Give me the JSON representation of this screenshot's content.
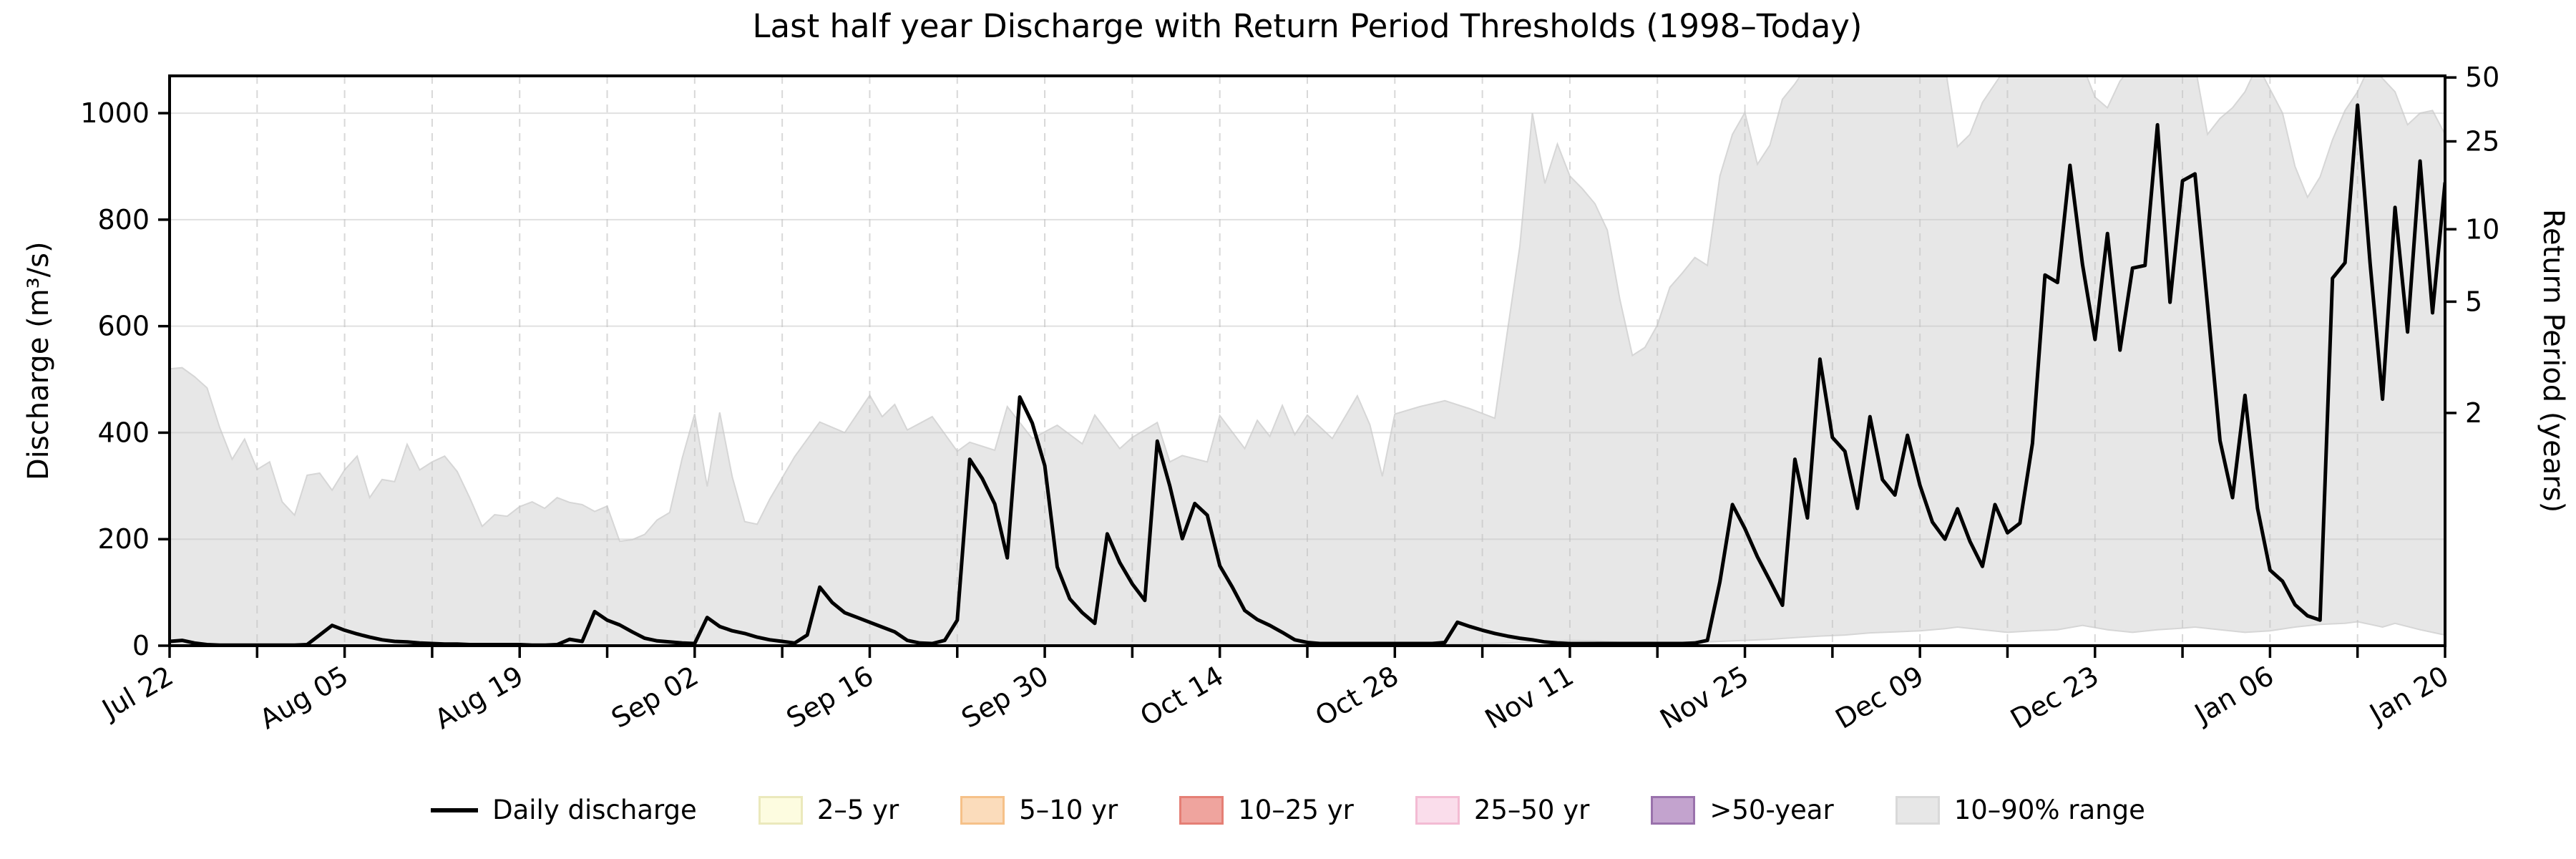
{
  "chart_data": {
    "type": "line",
    "title": "Last half year Discharge with Return Period Thresholds (1998–Today)",
    "ylabel_left": "Discharge (m³/s)",
    "ylabel_right": "Return Period (years)",
    "start_date": "Jul 22",
    "end_date": "Jan 20",
    "x_range_days": [
      0,
      182
    ],
    "x_minor_tick_interval_days": 7,
    "x_major_tick_days": [
      0,
      14,
      28,
      42,
      56,
      70,
      84,
      98,
      112,
      126,
      140,
      154,
      168,
      182
    ],
    "x_tick_labels": [
      "Jul 22",
      "Aug 05",
      "Aug 19",
      "Sep 02",
      "Sep 16",
      "Sep 30",
      "Oct 14",
      "Oct 28",
      "Nov 11",
      "Nov 25",
      "Dec 09",
      "Dec 23",
      "Jan 06",
      "Jan 20"
    ],
    "ylim_left": [
      0,
      1070
    ],
    "y_ticks_left": [
      0,
      200,
      400,
      600,
      800,
      1000
    ],
    "right_axis_ticks": [
      {
        "label": "2",
        "discharge": 437
      },
      {
        "label": "5",
        "discharge": 646
      },
      {
        "label": "10",
        "discharge": 782
      },
      {
        "label": "25",
        "discharge": 947
      },
      {
        "label": "50",
        "discharge": 1067
      }
    ],
    "grid": {
      "horizontal": "solid",
      "vertical": "dashed",
      "vertical_interval_days": 7,
      "legend_position": "bottom-center"
    },
    "colors": {
      "line": "#000000",
      "band_fill": "#e7e7e7",
      "band_edge": "#d6d6d6",
      "h_grid": "#c8c8c8",
      "v_grid": "#c4c4c4"
    },
    "legend": [
      {
        "label": "Daily discharge",
        "type": "line",
        "color": "#000000"
      },
      {
        "label": "2–5 yr",
        "type": "patch",
        "fill": "#fdfce0",
        "edge": "#ebe9bc"
      },
      {
        "label": "5–10 yr",
        "type": "patch",
        "fill": "#fbdcbb",
        "edge": "#f6c189"
      },
      {
        "label": "10–25 yr",
        "type": "patch",
        "fill": "#efa49e",
        "edge": "#e57f75"
      },
      {
        "label": "25–50 yr",
        "type": "patch",
        "fill": "#faddeb",
        "edge": "#f3bbd3"
      },
      {
        "label": ">50-year",
        "type": "patch",
        "fill": "#c3a3ce",
        "edge": "#9a72ac"
      },
      {
        "label": "10–90% range",
        "type": "patch",
        "fill": "#e7e7e7",
        "edge": "#d9d9d9"
      }
    ],
    "series": {
      "daily_discharge": {
        "name": "Daily discharge",
        "start_date": "Jul 22",
        "interval_days": 1,
        "values": [
          8,
          10,
          5,
          2,
          1,
          1,
          1,
          1,
          1,
          1,
          1,
          2,
          20,
          38,
          29,
          22,
          16,
          11,
          8,
          7,
          5,
          4,
          3,
          3,
          2,
          2,
          2,
          2,
          2,
          1,
          1,
          2,
          12,
          8,
          64,
          48,
          39,
          26,
          14,
          9,
          7,
          5,
          4,
          53,
          36,
          28,
          23,
          16,
          11,
          8,
          5,
          20,
          110,
          81,
          62,
          53,
          44,
          35,
          26,
          10,
          5,
          4,
          10,
          48,
          350,
          314,
          266,
          165,
          467,
          418,
          338,
          148,
          88,
          62,
          42,
          210,
          156,
          116,
          85,
          384,
          300,
          201,
          267,
          245,
          150,
          110,
          66,
          49,
          38,
          25,
          11,
          6,
          4,
          4,
          4,
          4,
          4,
          4,
          4,
          4,
          4,
          4,
          6,
          44,
          36,
          29,
          23,
          18,
          14,
          11,
          7,
          5,
          4,
          4,
          4,
          4,
          4,
          4,
          4,
          4,
          4,
          4,
          5,
          10,
          120,
          265,
          220,
          167,
          122,
          76,
          350,
          240,
          538,
          391,
          365,
          258,
          430,
          312,
          283,
          395,
          301,
          232,
          200,
          257,
          196,
          149,
          265,
          212,
          230,
          380,
          696,
          682,
          902,
          716,
          575,
          774,
          555,
          709,
          714,
          978,
          645,
          873,
          886,
          640,
          385,
          278,
          470,
          258,
          142,
          121,
          77,
          56,
          48,
          690,
          719,
          1015,
          719,
          463,
          823,
          589,
          910,
          625,
          870
        ]
      },
      "band_upper": [
        [
          0,
          520
        ],
        [
          1,
          522
        ],
        [
          2,
          505
        ],
        [
          3,
          484
        ],
        [
          4,
          410
        ],
        [
          5,
          350
        ],
        [
          6,
          388
        ],
        [
          7,
          331
        ],
        [
          8,
          345
        ],
        [
          9,
          270
        ],
        [
          10,
          245
        ],
        [
          11,
          320
        ],
        [
          12,
          324
        ],
        [
          13,
          292
        ],
        [
          14,
          330
        ],
        [
          15,
          356
        ],
        [
          16,
          278
        ],
        [
          17,
          312
        ],
        [
          18,
          308
        ],
        [
          19,
          378
        ],
        [
          20,
          330
        ],
        [
          21,
          345
        ],
        [
          22,
          356
        ],
        [
          23,
          327
        ],
        [
          24,
          278
        ],
        [
          25,
          224
        ],
        [
          26,
          246
        ],
        [
          27,
          243
        ],
        [
          28,
          261
        ],
        [
          29,
          270
        ],
        [
          30,
          258
        ],
        [
          31,
          278
        ],
        [
          32,
          269
        ],
        [
          33,
          265
        ],
        [
          34,
          252
        ],
        [
          35,
          262
        ],
        [
          36,
          196
        ],
        [
          37,
          199
        ],
        [
          38,
          209
        ],
        [
          39,
          236
        ],
        [
          40,
          250
        ],
        [
          41,
          352
        ],
        [
          42,
          435
        ],
        [
          43,
          299
        ],
        [
          44,
          438
        ],
        [
          45,
          317
        ],
        [
          46,
          233
        ],
        [
          47,
          228
        ],
        [
          48,
          275
        ],
        [
          50,
          355
        ],
        [
          52,
          420
        ],
        [
          54,
          400
        ],
        [
          56,
          470
        ],
        [
          57,
          430
        ],
        [
          58,
          453
        ],
        [
          59,
          405
        ],
        [
          61,
          430
        ],
        [
          63,
          365
        ],
        [
          64,
          382
        ],
        [
          66,
          367
        ],
        [
          67,
          449
        ],
        [
          69,
          389
        ],
        [
          71,
          414
        ],
        [
          73,
          379
        ],
        [
          74,
          433
        ],
        [
          76,
          370
        ],
        [
          77,
          391
        ],
        [
          79,
          419
        ],
        [
          80,
          345
        ],
        [
          81,
          357
        ],
        [
          83,
          345
        ],
        [
          84,
          432
        ],
        [
          86,
          370
        ],
        [
          87,
          423
        ],
        [
          88,
          393
        ],
        [
          89,
          451
        ],
        [
          90,
          396
        ],
        [
          91,
          433
        ],
        [
          93,
          389
        ],
        [
          95,
          469
        ],
        [
          96,
          415
        ],
        [
          97,
          318
        ],
        [
          98,
          435
        ],
        [
          100,
          449
        ],
        [
          102,
          460
        ],
        [
          104,
          445
        ],
        [
          106,
          427
        ],
        [
          107,
          590
        ],
        [
          108,
          750
        ],
        [
          109,
          1000
        ],
        [
          110,
          868
        ],
        [
          111,
          942
        ],
        [
          112,
          882
        ],
        [
          113,
          858
        ],
        [
          114,
          830
        ],
        [
          115,
          780
        ],
        [
          116,
          650
        ],
        [
          117,
          545
        ],
        [
          118,
          560
        ],
        [
          119,
          602
        ],
        [
          120,
          673
        ],
        [
          121,
          700
        ],
        [
          122,
          729
        ],
        [
          123,
          714
        ],
        [
          124,
          882
        ],
        [
          125,
          960
        ],
        [
          126,
          1001
        ],
        [
          127,
          904
        ],
        [
          128,
          940
        ],
        [
          129,
          1026
        ],
        [
          130,
          1055
        ],
        [
          131,
          1090
        ],
        [
          142,
          1090
        ],
        [
          143,
          937
        ],
        [
          144,
          960
        ],
        [
          145,
          1020
        ],
        [
          147,
          1090
        ],
        [
          153,
          1090
        ],
        [
          154,
          1030
        ],
        [
          155,
          1010
        ],
        [
          156,
          1060
        ],
        [
          157,
          1090
        ],
        [
          162,
          1090
        ],
        [
          163,
          960
        ],
        [
          164,
          990
        ],
        [
          165,
          1010
        ],
        [
          166,
          1040
        ],
        [
          167,
          1090
        ],
        [
          169,
          1000
        ],
        [
          170,
          900
        ],
        [
          171,
          842
        ],
        [
          172,
          880
        ],
        [
          173,
          950
        ],
        [
          174,
          1005
        ],
        [
          175,
          1040
        ],
        [
          176,
          1090
        ],
        [
          178,
          1040
        ],
        [
          179,
          978
        ],
        [
          180,
          1000
        ],
        [
          181,
          1005
        ],
        [
          182,
          960
        ]
      ],
      "band_lower": [
        [
          0,
          2
        ],
        [
          20,
          1
        ],
        [
          40,
          1
        ],
        [
          60,
          1
        ],
        [
          80,
          2
        ],
        [
          100,
          3
        ],
        [
          102,
          3
        ],
        [
          106,
          4
        ],
        [
          108,
          6
        ],
        [
          110,
          8
        ],
        [
          112,
          10
        ],
        [
          114,
          9
        ],
        [
          116,
          6
        ],
        [
          118,
          4
        ],
        [
          120,
          5
        ],
        [
          122,
          6
        ],
        [
          124,
          8
        ],
        [
          126,
          10
        ],
        [
          128,
          12
        ],
        [
          130,
          15
        ],
        [
          132,
          18
        ],
        [
          134,
          20
        ],
        [
          136,
          24
        ],
        [
          138,
          26
        ],
        [
          140,
          28
        ],
        [
          142,
          32
        ],
        [
          143,
          35
        ],
        [
          145,
          30
        ],
        [
          147,
          25
        ],
        [
          149,
          28
        ],
        [
          151,
          30
        ],
        [
          153,
          38
        ],
        [
          155,
          30
        ],
        [
          157,
          25
        ],
        [
          159,
          30
        ],
        [
          161,
          33
        ],
        [
          162,
          35
        ],
        [
          164,
          30
        ],
        [
          166,
          25
        ],
        [
          168,
          28
        ],
        [
          170,
          35
        ],
        [
          172,
          40
        ],
        [
          174,
          42
        ],
        [
          175,
          45
        ],
        [
          176,
          40
        ],
        [
          177,
          35
        ],
        [
          178,
          42
        ],
        [
          180,
          30
        ],
        [
          181,
          25
        ],
        [
          182,
          20
        ]
      ]
    }
  }
}
